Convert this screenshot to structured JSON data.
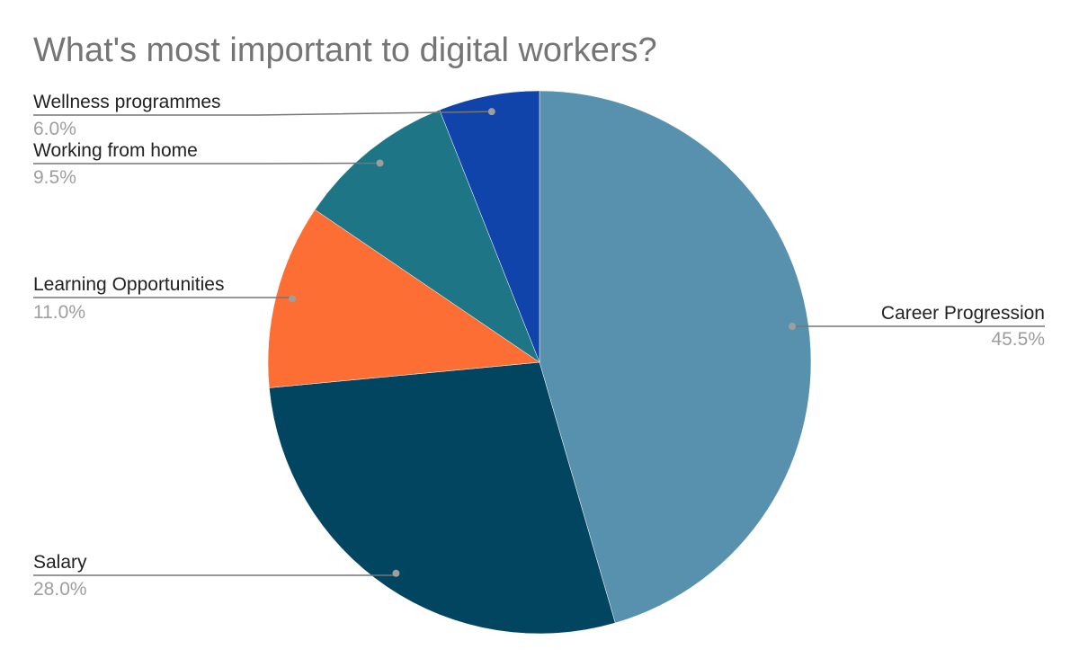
{
  "chart_data": {
    "type": "pie",
    "title": "What's most important to digital workers?",
    "slices": [
      {
        "label": "Career Progression",
        "value": 45.5,
        "value_label": "45.5%",
        "color": "#5891ae"
      },
      {
        "label": "Salary",
        "value": 28.0,
        "value_label": "28.0%",
        "color": "#024561"
      },
      {
        "label": "Learning Opportunities",
        "value": 11.0,
        "value_label": "11.0%",
        "color": "#fd6e34"
      },
      {
        "label": "Working from home",
        "value": 9.5,
        "value_label": "9.5%",
        "color": "#1e7585"
      },
      {
        "label": "Wellness programmes",
        "value": 6.0,
        "value_label": "6.0%",
        "color": "#1044ab"
      }
    ],
    "start": "12 o'clock",
    "direction": "clockwise",
    "labels": "outside with leader lines"
  }
}
